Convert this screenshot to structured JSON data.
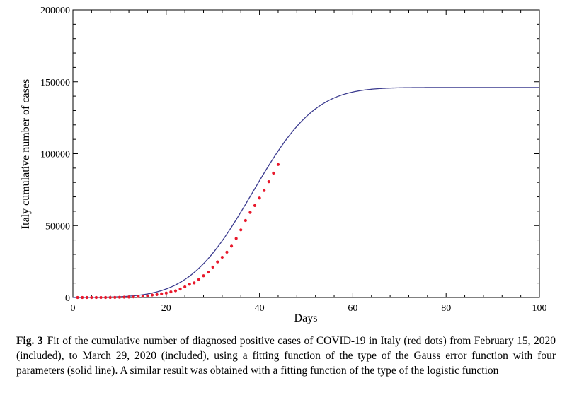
{
  "chart_data": {
    "type": "line",
    "xlabel": "Days",
    "ylabel": "Italy cumulative number of cases",
    "xlim": [
      0,
      100
    ],
    "ylim": [
      0,
      200000
    ],
    "x_ticks": [
      0,
      20,
      40,
      60,
      80,
      100
    ],
    "x_tick_labels": [
      "0",
      "20",
      "40",
      "60",
      "80",
      "100"
    ],
    "y_ticks": [
      0,
      50000,
      100000,
      150000,
      200000
    ],
    "y_tick_labels": [
      "0",
      "50000",
      "100000",
      "150000",
      "200000"
    ],
    "grid": false,
    "series": [
      {
        "kind": "line",
        "color": "#3b3b8f",
        "fit": {
          "form": "gauss_error_function",
          "amplitude": 146000,
          "center": 38.5,
          "width": 15
        }
      },
      {
        "kind": "scatter",
        "color": "#e8192c",
        "x": [
          1,
          2,
          3,
          4,
          5,
          6,
          7,
          8,
          9,
          10,
          11,
          12,
          13,
          14,
          15,
          16,
          17,
          18,
          19,
          20,
          21,
          22,
          23,
          24,
          25,
          26,
          27,
          28,
          29,
          30,
          31,
          32,
          33,
          34,
          35,
          36,
          37,
          38,
          39,
          40,
          41,
          42,
          43,
          44
        ],
        "y": [
          3,
          3,
          3,
          3,
          3,
          3,
          3,
          20,
          79,
          152,
          229,
          322,
          400,
          650,
          888,
          1128,
          1694,
          2036,
          2502,
          3089,
          3858,
          4636,
          5883,
          7375,
          9172,
          10149,
          12462,
          15113,
          17660,
          21157,
          24747,
          27980,
          31506,
          35713,
          41035,
          47021,
          53578,
          59138,
          63927,
          69176,
          74386,
          80539,
          86498,
          92472
        ]
      }
    ]
  },
  "caption": {
    "label": "Fig. 3",
    "text": "Fit of the cumulative number of diagnosed positive cases of COVID-19 in Italy (red dots) from February 15, 2020 (included), to March 29, 2020 (included), using a fitting function of the type of the Gauss error function with four parameters (solid line). A similar result was obtained with a fitting function of the type of the logistic function"
  }
}
